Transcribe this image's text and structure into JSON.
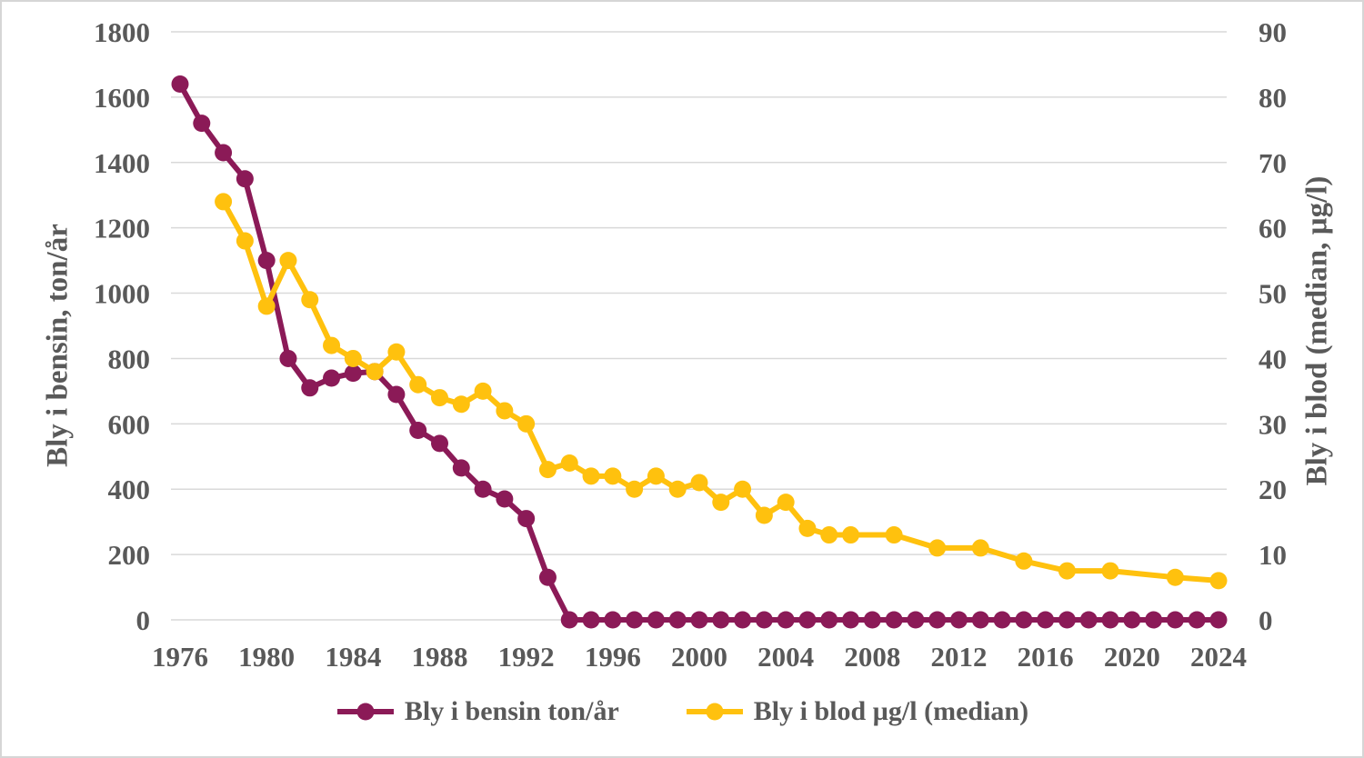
{
  "chart_data": {
    "type": "line",
    "title": "",
    "ylabel_left": "Bly i bensin, ton/år",
    "ylabel_right": "Bly i blod (median, µg/l)",
    "xlabel": "",
    "grid": true,
    "legend_position": "bottom",
    "colors": {
      "bensin": "#8B1A57",
      "blod": "#FFC10E",
      "axis_text": "#595959",
      "gridline": "#D9D9D9",
      "frame_border": "#D6D6D6",
      "background": "#FFFFFF"
    },
    "x_axis": {
      "min": 1976,
      "max": 2024,
      "tick_step": 4,
      "tick_labels": [
        "1976",
        "1980",
        "1984",
        "1988",
        "1992",
        "1996",
        "2000",
        "2004",
        "2008",
        "2012",
        "2016",
        "2020",
        "2024"
      ]
    },
    "y_axis_left": {
      "min": 0,
      "max": 1800,
      "tick_step": 200,
      "ticks": [
        1800,
        1600,
        1400,
        1200,
        1000,
        800,
        600,
        400,
        200,
        0
      ]
    },
    "y_axis_right": {
      "min": 0,
      "max": 90,
      "tick_step": 10,
      "ticks": [
        90,
        80,
        70,
        60,
        50,
        40,
        30,
        20,
        10,
        0
      ]
    },
    "series": [
      {
        "name": "Bly i bensin ton/år",
        "axis": "left",
        "color_key": "bensin",
        "points": [
          [
            1976,
            1640
          ],
          [
            1977,
            1520
          ],
          [
            1978,
            1430
          ],
          [
            1979,
            1350
          ],
          [
            1980,
            1100
          ],
          [
            1981,
            800
          ],
          [
            1982,
            710
          ],
          [
            1983,
            740
          ],
          [
            1984,
            755
          ],
          [
            1985,
            760
          ],
          [
            1986,
            690
          ],
          [
            1987,
            580
          ],
          [
            1988,
            540
          ],
          [
            1989,
            465
          ],
          [
            1990,
            400
          ],
          [
            1991,
            370
          ],
          [
            1992,
            310
          ],
          [
            1993,
            130
          ],
          [
            1994,
            0
          ],
          [
            1995,
            0
          ],
          [
            1996,
            0
          ],
          [
            1997,
            0
          ],
          [
            1998,
            0
          ],
          [
            1999,
            0
          ],
          [
            2000,
            0
          ],
          [
            2001,
            0
          ],
          [
            2002,
            0
          ],
          [
            2003,
            0
          ],
          [
            2004,
            0
          ],
          [
            2005,
            0
          ],
          [
            2006,
            0
          ],
          [
            2007,
            0
          ],
          [
            2008,
            0
          ],
          [
            2009,
            0
          ],
          [
            2010,
            0
          ],
          [
            2011,
            0
          ],
          [
            2012,
            0
          ],
          [
            2013,
            0
          ],
          [
            2014,
            0
          ],
          [
            2015,
            0
          ],
          [
            2016,
            0
          ],
          [
            2017,
            0
          ],
          [
            2018,
            0
          ],
          [
            2019,
            0
          ],
          [
            2020,
            0
          ],
          [
            2021,
            0
          ],
          [
            2022,
            0
          ],
          [
            2023,
            0
          ],
          [
            2024,
            0
          ]
        ]
      },
      {
        "name": "Bly i blod µg/l (median)",
        "axis": "right",
        "color_key": "blod",
        "points": [
          [
            1978,
            64
          ],
          [
            1979,
            58
          ],
          [
            1980,
            48
          ],
          [
            1981,
            55
          ],
          [
            1982,
            49
          ],
          [
            1983,
            42
          ],
          [
            1984,
            40
          ],
          [
            1985,
            38
          ],
          [
            1986,
            41
          ],
          [
            1987,
            36
          ],
          [
            1988,
            34
          ],
          [
            1989,
            33
          ],
          [
            1990,
            35
          ],
          [
            1991,
            32
          ],
          [
            1992,
            30
          ],
          [
            1993,
            23
          ],
          [
            1994,
            24
          ],
          [
            1995,
            22
          ],
          [
            1996,
            22
          ],
          [
            1997,
            20
          ],
          [
            1998,
            22
          ],
          [
            1999,
            20
          ],
          [
            2000,
            21
          ],
          [
            2001,
            18
          ],
          [
            2002,
            20
          ],
          [
            2003,
            16
          ],
          [
            2004,
            18
          ],
          [
            2005,
            14
          ],
          [
            2006,
            13
          ],
          [
            2007,
            13
          ],
          [
            2009,
            13
          ],
          [
            2011,
            11
          ],
          [
            2013,
            11
          ],
          [
            2015,
            9
          ],
          [
            2017,
            7.5
          ],
          [
            2019,
            7.5
          ],
          [
            2022,
            6.5
          ],
          [
            2024,
            6
          ]
        ]
      }
    ]
  }
}
